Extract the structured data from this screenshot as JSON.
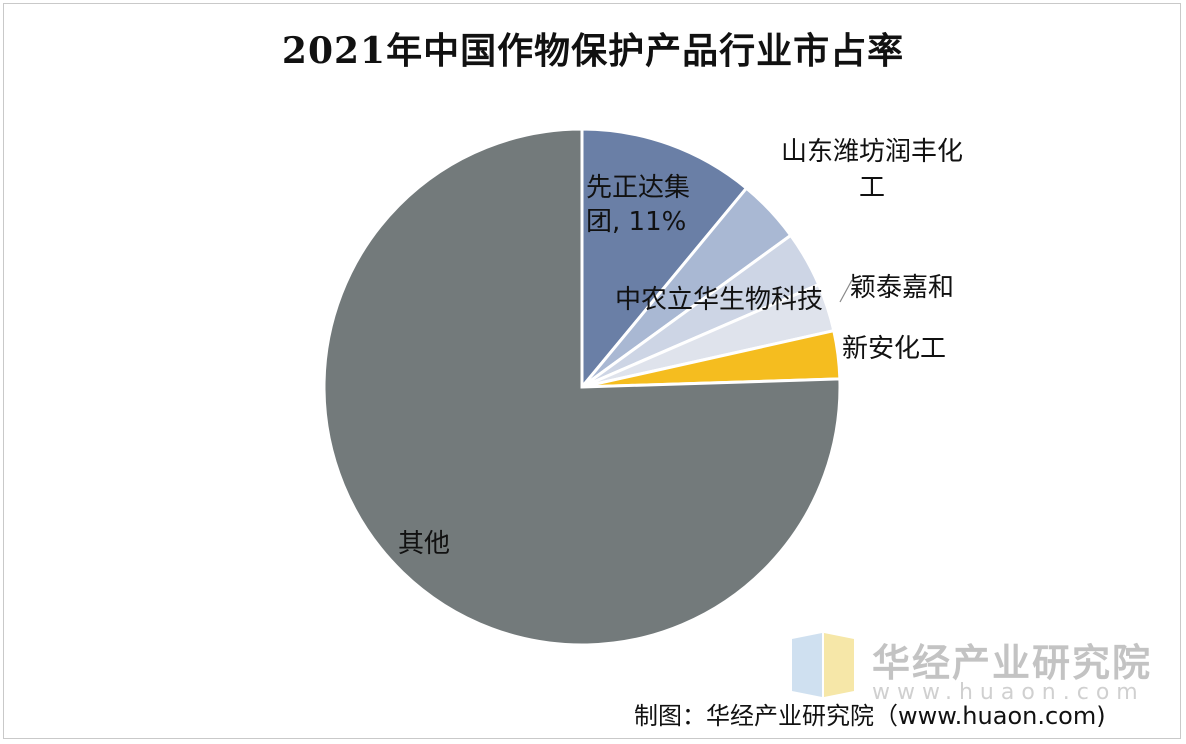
{
  "title": "2021年中国作物保护产品行业市占率",
  "chart_data": {
    "type": "pie",
    "title": "2021年中国作物保护产品行业市占率",
    "slices": [
      {
        "label": "先正达集团",
        "value": 11,
        "display": "先正达集团, 11%",
        "color": "#6a7fa6"
      },
      {
        "label": "山东潍坊润丰化工",
        "value": 4,
        "display": "山东潍坊润丰化工",
        "color": "#a9b8d3"
      },
      {
        "label": "中农立华生物科技",
        "value": 3.5,
        "display": "中农立华生物科技",
        "color": "#cdd5e5"
      },
      {
        "label": "颖泰嘉和",
        "value": 3,
        "display": "颖泰嘉和",
        "color": "#dfe3ec"
      },
      {
        "label": "新安化工",
        "value": 3,
        "display": "新安化工",
        "color": "#f5bd1f"
      },
      {
        "label": "其他",
        "value": 75.5,
        "display": "其他",
        "color": "#737a7b"
      }
    ]
  },
  "watermark": {
    "brand": "华经产业研究院",
    "url": "www.huaon.com"
  },
  "source": "制图：华经产业研究院（www.huaon.com)"
}
